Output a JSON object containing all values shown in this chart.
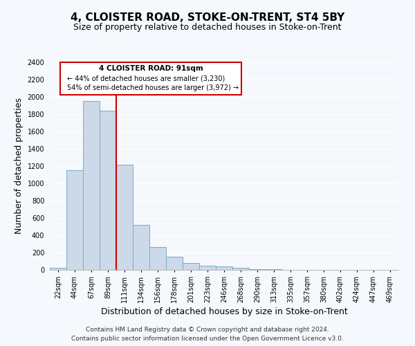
{
  "title": "4, CLOISTER ROAD, STOKE-ON-TRENT, ST4 5BY",
  "subtitle": "Size of property relative to detached houses in Stoke-on-Trent",
  "xlabel": "Distribution of detached houses by size in Stoke-on-Trent",
  "ylabel": "Number of detached properties",
  "bin_labels": [
    "22sqm",
    "44sqm",
    "67sqm",
    "89sqm",
    "111sqm",
    "134sqm",
    "156sqm",
    "178sqm",
    "201sqm",
    "223sqm",
    "246sqm",
    "268sqm",
    "290sqm",
    "313sqm",
    "335sqm",
    "357sqm",
    "380sqm",
    "402sqm",
    "424sqm",
    "447sqm",
    "469sqm"
  ],
  "bar_heights": [
    25,
    1155,
    1950,
    1840,
    1220,
    520,
    265,
    150,
    80,
    50,
    38,
    25,
    10,
    5,
    3,
    2,
    1,
    1,
    1,
    1,
    0
  ],
  "bar_color": "#ccd9e8",
  "bar_edge_color": "#7aaac8",
  "vline_x_idx": 3,
  "vline_color": "#cc0000",
  "ylim": [
    0,
    2400
  ],
  "yticks": [
    0,
    200,
    400,
    600,
    800,
    1000,
    1200,
    1400,
    1600,
    1800,
    2000,
    2200,
    2400
  ],
  "annotation_title": "4 CLOISTER ROAD: 91sqm",
  "annotation_line1": "← 44% of detached houses are smaller (3,230)",
  "annotation_line2": "54% of semi-detached houses are larger (3,972) →",
  "annotation_box_color": "#ffffff",
  "annotation_box_edge": "#cc0000",
  "footer_line1": "Contains HM Land Registry data © Crown copyright and database right 2024.",
  "footer_line2": "Contains public sector information licensed under the Open Government Licence v3.0.",
  "background_color": "#f5f8fc",
  "plot_background": "#f5f8fc",
  "grid_color": "#ffffff",
  "title_fontsize": 11,
  "subtitle_fontsize": 9,
  "axis_label_fontsize": 9,
  "tick_fontsize": 7,
  "footer_fontsize": 6.5
}
